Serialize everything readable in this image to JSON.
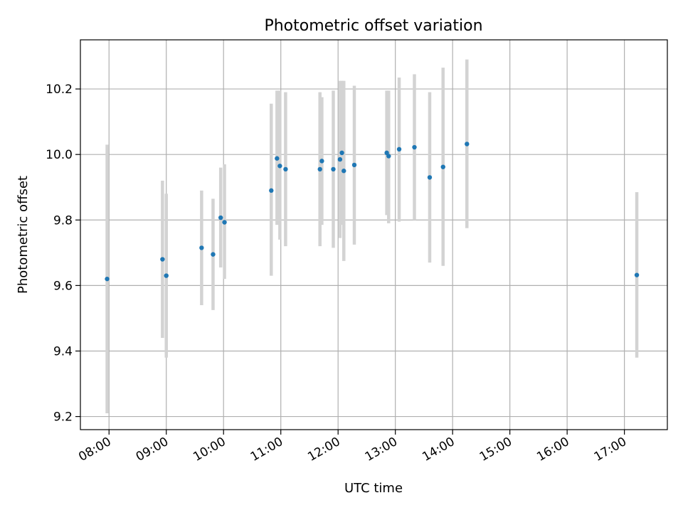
{
  "chart_data": {
    "type": "scatter",
    "title": "Photometric offset variation",
    "xlabel": "UTC time",
    "ylabel": "Photometric offset",
    "x_axis_type": "time",
    "xlim": [
      "07:30",
      "17:45"
    ],
    "ylim": [
      9.16,
      10.35
    ],
    "x_ticks": [
      "08:00",
      "09:00",
      "10:00",
      "11:00",
      "12:00",
      "13:00",
      "14:00",
      "15:00",
      "16:00",
      "17:00"
    ],
    "y_ticks": [
      9.2,
      9.4,
      9.6,
      9.8,
      10.0,
      10.2
    ],
    "y_tick_labels": [
      "9.2",
      "9.4",
      "9.6",
      "9.8",
      "10.0",
      "10.2"
    ],
    "grid": true,
    "legend": "none",
    "colors": {
      "point": "#1f77b4",
      "errorbar": "#d3d3d3",
      "grid": "#b0b0b0",
      "axes": "#000000"
    },
    "series": [
      {
        "points": [
          {
            "x": "07:58",
            "y": 9.62,
            "ylow": 9.21,
            "yhigh": 10.03
          },
          {
            "x": "08:56",
            "y": 9.68,
            "ylow": 9.44,
            "yhigh": 9.92
          },
          {
            "x": "09:00",
            "y": 9.63,
            "ylow": 9.38,
            "yhigh": 9.88
          },
          {
            "x": "09:37",
            "y": 9.715,
            "ylow": 9.54,
            "yhigh": 9.89
          },
          {
            "x": "09:49",
            "y": 9.695,
            "ylow": 9.525,
            "yhigh": 9.865
          },
          {
            "x": "09:57",
            "y": 9.807,
            "ylow": 9.655,
            "yhigh": 9.96
          },
          {
            "x": "10:01",
            "y": 9.793,
            "ylow": 9.62,
            "yhigh": 9.97
          },
          {
            "x": "10:50",
            "y": 9.89,
            "ylow": 9.63,
            "yhigh": 10.155
          },
          {
            "x": "10:56",
            "y": 9.988,
            "ylow": 9.785,
            "yhigh": 10.195
          },
          {
            "x": "10:59",
            "y": 9.965,
            "ylow": 9.74,
            "yhigh": 10.195
          },
          {
            "x": "11:05",
            "y": 9.955,
            "ylow": 9.72,
            "yhigh": 10.19
          },
          {
            "x": "11:41",
            "y": 9.955,
            "ylow": 9.72,
            "yhigh": 10.19
          },
          {
            "x": "11:43",
            "y": 9.98,
            "ylow": 9.785,
            "yhigh": 10.175
          },
          {
            "x": "11:55",
            "y": 9.955,
            "ylow": 9.715,
            "yhigh": 10.195
          },
          {
            "x": "12:02",
            "y": 9.985,
            "ylow": 9.745,
            "yhigh": 10.225
          },
          {
            "x": "12:04",
            "y": 10.005,
            "ylow": 9.785,
            "yhigh": 10.225
          },
          {
            "x": "12:06",
            "y": 9.95,
            "ylow": 9.675,
            "yhigh": 10.225
          },
          {
            "x": "12:17",
            "y": 9.968,
            "ylow": 9.725,
            "yhigh": 10.21
          },
          {
            "x": "12:51",
            "y": 10.005,
            "ylow": 9.815,
            "yhigh": 10.195
          },
          {
            "x": "12:53",
            "y": 9.995,
            "ylow": 9.79,
            "yhigh": 10.195
          },
          {
            "x": "13:04",
            "y": 10.016,
            "ylow": 9.795,
            "yhigh": 10.235
          },
          {
            "x": "13:20",
            "y": 10.022,
            "ylow": 9.8,
            "yhigh": 10.245
          },
          {
            "x": "13:36",
            "y": 9.93,
            "ylow": 9.67,
            "yhigh": 10.19
          },
          {
            "x": "13:50",
            "y": 9.962,
            "ylow": 9.66,
            "yhigh": 10.265
          },
          {
            "x": "14:15",
            "y": 10.032,
            "ylow": 9.775,
            "yhigh": 10.29
          },
          {
            "x": "17:13",
            "y": 9.632,
            "ylow": 9.38,
            "yhigh": 9.885
          }
        ]
      }
    ]
  }
}
